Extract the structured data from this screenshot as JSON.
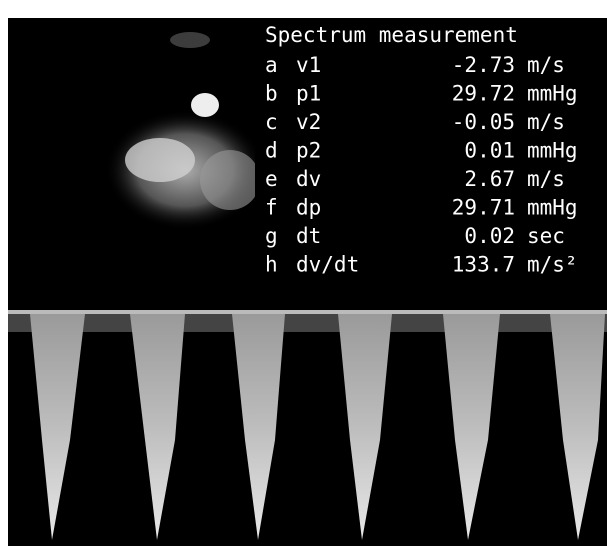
{
  "panel": {
    "title": "Spectrum measurement",
    "rows": [
      [
        "a",
        "v1",
        "-2.73",
        "m/s"
      ],
      [
        "b",
        "p1",
        "29.72",
        "mmHg"
      ],
      [
        "c",
        "v2",
        "-0.05",
        "m/s"
      ],
      [
        "d",
        "p2",
        "0.01",
        "mmHg"
      ],
      [
        "e",
        "dv",
        "2.67",
        "m/s"
      ],
      [
        "f",
        "dp",
        "29.71",
        "mmHg"
      ],
      [
        "g",
        "dt",
        "0.02",
        "sec"
      ],
      [
        "h",
        "dv/dt",
        "133.7",
        "m/s²"
      ]
    ]
  }
}
